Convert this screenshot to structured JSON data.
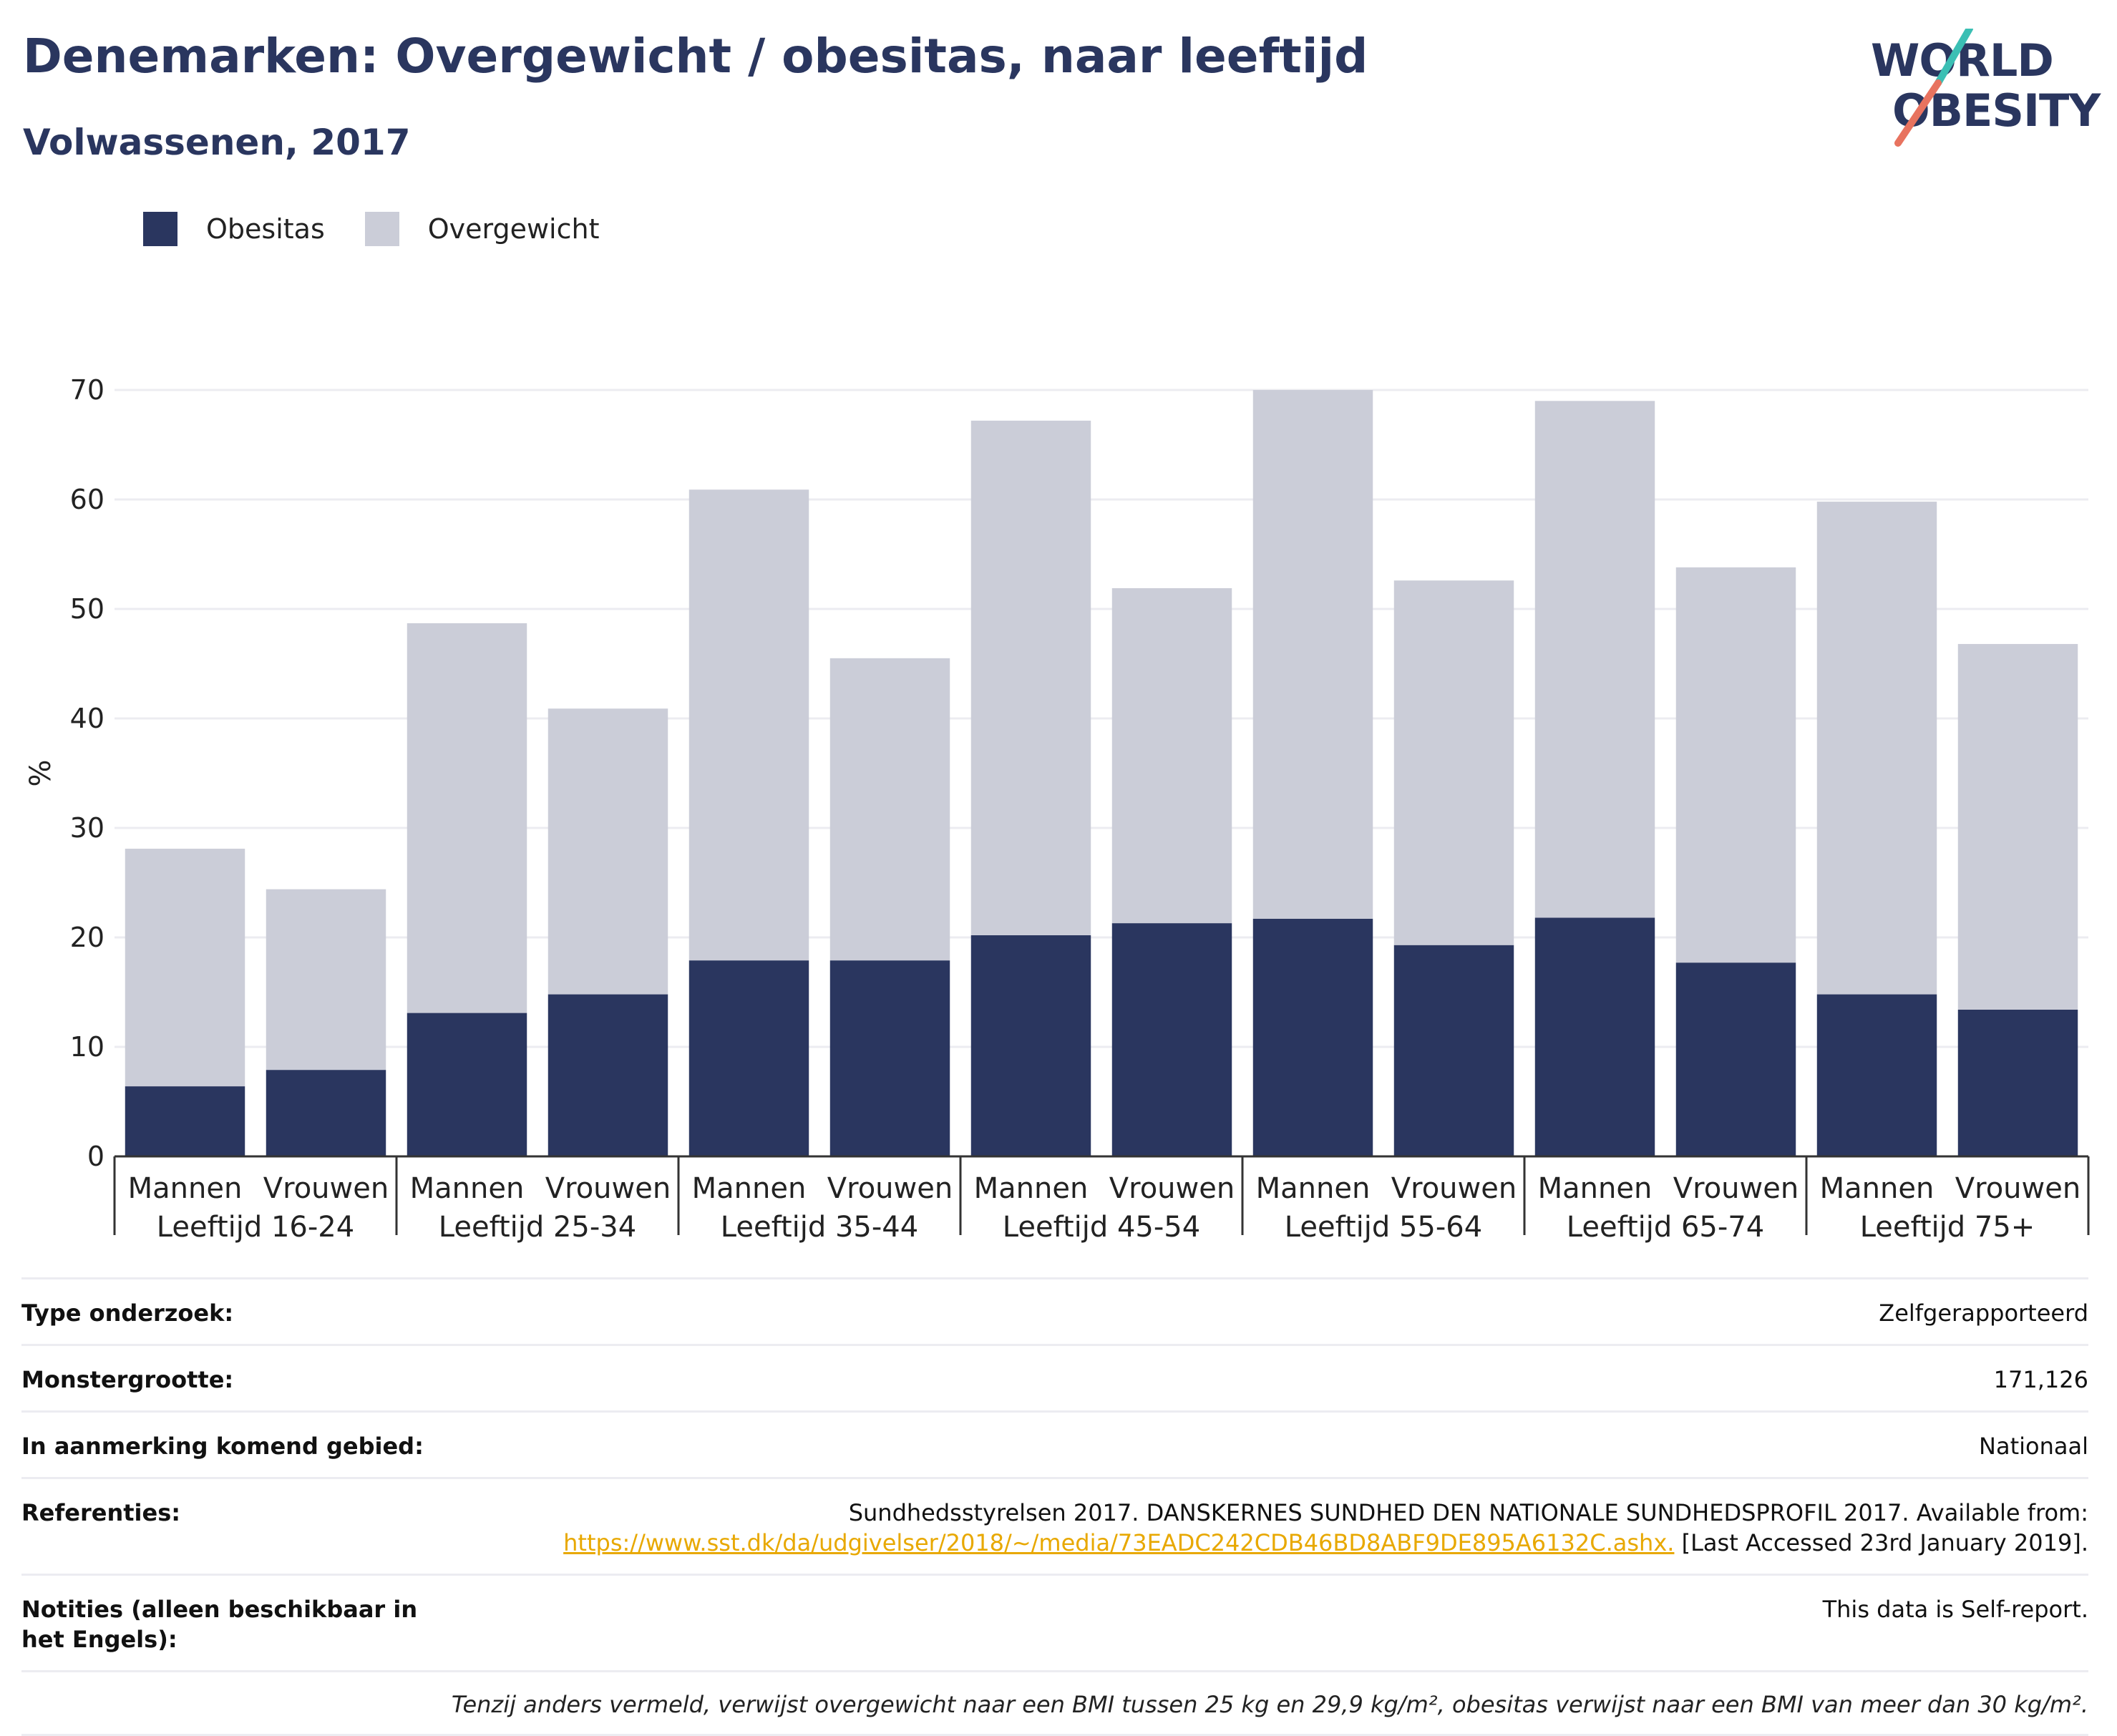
{
  "title": "Denemarken: Overgewicht / obesitas, naar leeftijd",
  "subtitle": "Volwassenen, 2017",
  "logo": {
    "line1": "WORLD",
    "line2": "OBESITY"
  },
  "colors": {
    "obesitas": "#2a365f",
    "overgewicht": "#cbcdd8",
    "grid": "#ececf1",
    "axis": "#333333",
    "logo_teal": "#3bbfb4",
    "logo_coral": "#e8735f"
  },
  "chart_data": {
    "type": "bar",
    "stacked": true,
    "ylabel": "%",
    "ylim": [
      0,
      70
    ],
    "yticks": [
      0,
      10,
      20,
      30,
      40,
      50,
      60,
      70
    ],
    "grid": true,
    "legend_position": "top-left",
    "categories": [
      "Mannen",
      "Vrouwen",
      "Mannen",
      "Vrouwen",
      "Mannen",
      "Vrouwen",
      "Mannen",
      "Vrouwen",
      "Mannen",
      "Vrouwen",
      "Mannen",
      "Vrouwen",
      "Mannen",
      "Vrouwen"
    ],
    "groups": [
      "Leeftijd 16-24",
      "Leeftijd 25-34",
      "Leeftijd 35-44",
      "Leeftijd 45-54",
      "Leeftijd 55-64",
      "Leeftijd 65-74",
      "Leeftijd 75+"
    ],
    "series": [
      {
        "name": "Obesitas",
        "color": "#2a365f",
        "values": [
          6.4,
          7.9,
          13.1,
          14.8,
          17.9,
          17.9,
          20.2,
          21.3,
          21.7,
          19.3,
          21.8,
          17.7,
          14.8,
          13.4
        ]
      },
      {
        "name": "Overgewicht",
        "color": "#cbcdd8",
        "values": [
          21.7,
          16.5,
          35.6,
          26.1,
          43.0,
          27.6,
          47.0,
          30.6,
          48.3,
          33.3,
          47.2,
          36.1,
          45.0,
          33.4
        ]
      }
    ]
  },
  "info": {
    "survey_type": {
      "label": "Type onderzoek:",
      "value": "Zelfgerapporteerd"
    },
    "sample_size": {
      "label": "Monstergrootte:",
      "value": "171,126"
    },
    "area": {
      "label": "In aanmerking komend gebied:",
      "value": "Nationaal"
    },
    "references": {
      "label": "Referenties:",
      "line1": "Sundhedsstyrelsen 2017. DANSKERNES SUNDHED DEN NATIONALE SUNDHEDSPROFIL 2017. Available from:",
      "link": "https://www.sst.dk/da/udgivelser/2018/~/media/73EADC242CDB46BD8ABF9DE895A6132C.ashx.",
      "after_link": " [Last Accessed 23rd January 2019]."
    },
    "notes": {
      "label": "Notities (alleen beschikbaar in het Engels):",
      "value": "This data is Self-report."
    },
    "footnote": "Tenzij anders vermeld, verwijst overgewicht naar een BMI tussen 25 kg en 29,9 kg/m², obesitas verwijst naar een BMI van meer dan 30 kg/m²."
  }
}
